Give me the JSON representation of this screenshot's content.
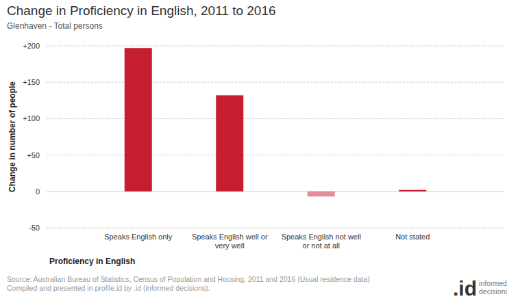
{
  "chart_data": {
    "type": "bar",
    "title": "Change in Proficiency in English, 2011 to 2016",
    "subtitle": "Glenhaven - Total persons",
    "x_label": "Proficiency in English",
    "y_label": "Change in number of people",
    "categories": [
      "Speaks English only",
      "Speaks English well or very well",
      "Speaks English not well or not at all",
      "Not stated"
    ],
    "values": [
      197,
      132,
      -7,
      2
    ],
    "colors": [
      "#c41e2f",
      "#c41e2f",
      "#e38d98",
      "#c41e2f"
    ],
    "ylim": [
      -50,
      200
    ],
    "yticks": [
      -50,
      0,
      {
        "value": 50,
        "label": "+50"
      },
      {
        "value": 100,
        "label": "+100"
      },
      {
        "value": 150,
        "label": "+150"
      },
      {
        "value": 200,
        "label": "+200"
      }
    ],
    "grid": true,
    "source": [
      "Source: Australian Bureau of Statistics, Census of Population and Housing, 2011 and 2016 (Usual residence data)",
      "Compiled and presented in profile.id by .id (informed decisions)."
    ],
    "logo": {
      "mark": ".id",
      "text": "informed decisions"
    }
  }
}
